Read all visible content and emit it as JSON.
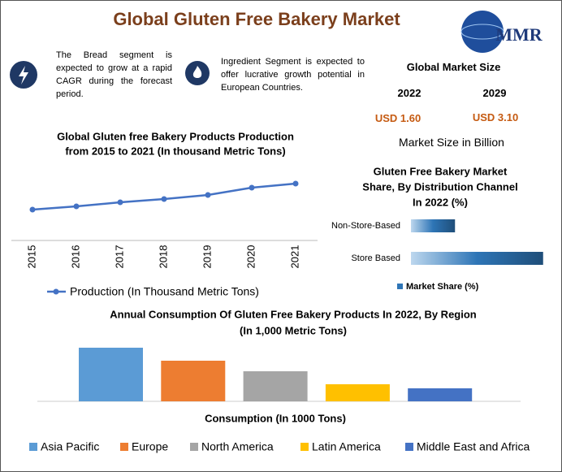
{
  "title": "Global Gluten Free Bakery Market",
  "logo": "MMR",
  "highlights": [
    "The Bread segment is expected to grow at a rapid CAGR during the forecast period.",
    "Ingredient Segment is expected to offer lucrative growth potential in European Countries."
  ],
  "market_size": {
    "heading": "Global Market Size",
    "years": [
      "2022",
      "2029"
    ],
    "values": [
      "USD 1.60",
      "USD 3.10"
    ],
    "note": "Market Size in Billion"
  },
  "chart_data": [
    {
      "type": "line",
      "title": [
        "Global Gluten free Bakery Products Production",
        "from 2015 to 2021 (In thousand Metric Tons)"
      ],
      "categories": [
        "2015",
        "2016",
        "2017",
        "2018",
        "2019",
        "2020",
        "2021"
      ],
      "series": [
        {
          "name": "Production (In Thousand Metric Tons)",
          "color": "#4472c4",
          "values": [
            38,
            42,
            47,
            51,
            56,
            65,
            70
          ]
        }
      ]
    },
    {
      "type": "hbar",
      "title": [
        "Gluten Free Bakery Market",
        "Share, By Distribution Channel",
        "In 2022 (%)"
      ],
      "categories": [
        "Non-Store-Based",
        "Store Based"
      ],
      "series": [
        {
          "name": "Market Share (%)",
          "color": "#2e75b6",
          "values": [
            25,
            75
          ]
        }
      ]
    },
    {
      "type": "bar",
      "title": [
        "Annual Consumption Of Gluten Free Bakery Products In 2022, By Region",
        "(In 1,000 Metric Tons)"
      ],
      "xlabel": "Consumption (In 1000  Tons)",
      "series": [
        {
          "name": "Asia Pacific",
          "color": "#5b9bd5",
          "values": [
            66
          ]
        },
        {
          "name": "Europe",
          "color": "#ed7d31",
          "values": [
            50
          ]
        },
        {
          "name": "North America",
          "color": "#a5a5a5",
          "values": [
            37
          ]
        },
        {
          "name": "Latin America",
          "color": "#ffc000",
          "values": [
            21
          ]
        },
        {
          "name": "Middle East and Africa",
          "color": "#4472c4",
          "values": [
            16
          ]
        }
      ]
    }
  ]
}
